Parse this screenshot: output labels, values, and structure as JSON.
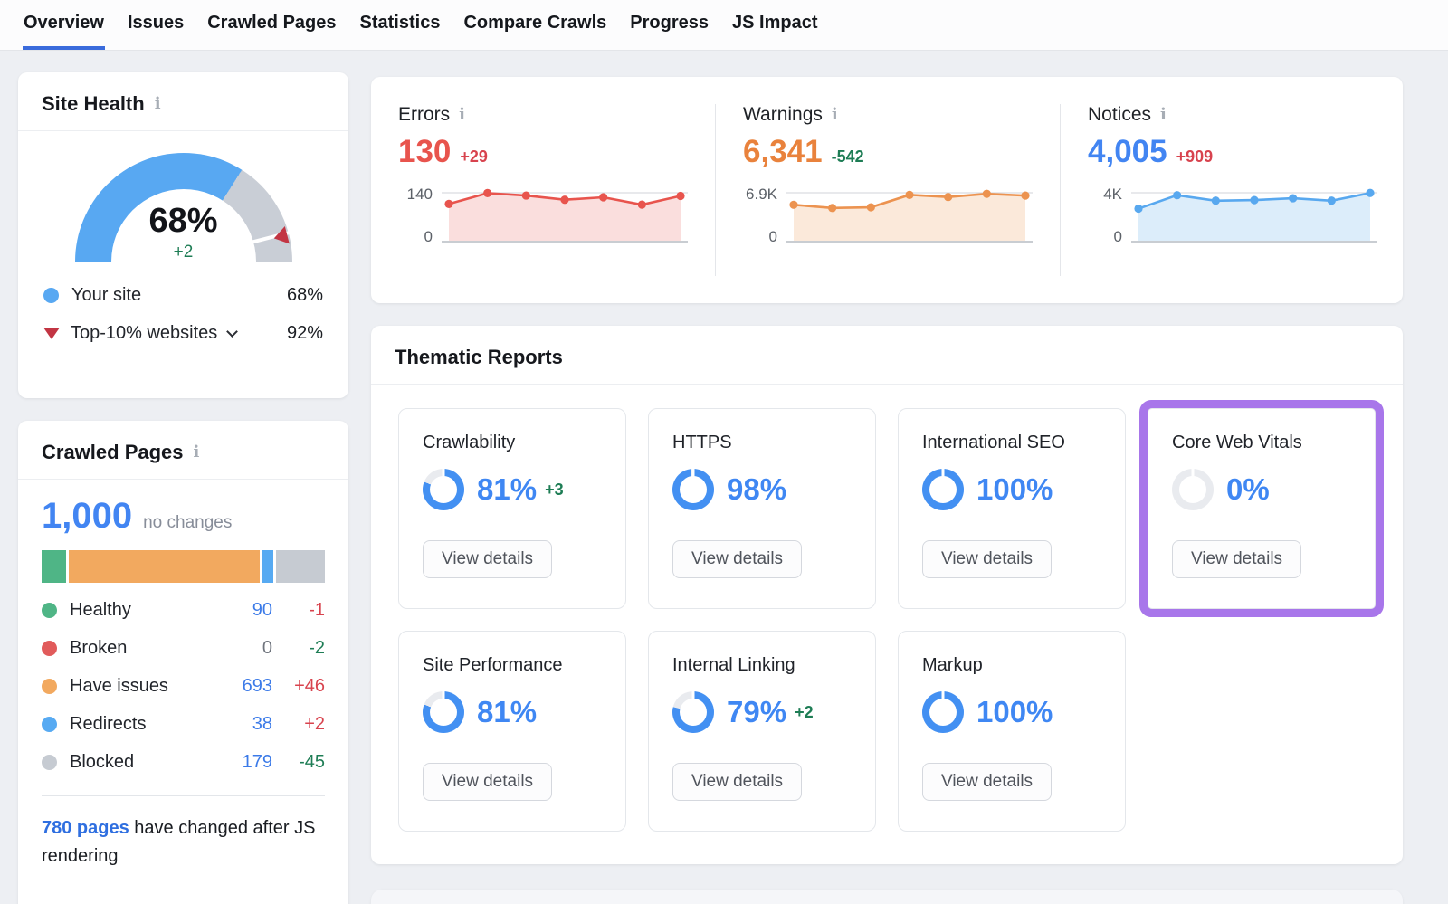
{
  "nav": {
    "active_color": "#3a6bdc",
    "tabs": [
      {
        "label": "Overview",
        "active": true
      },
      {
        "label": "Issues"
      },
      {
        "label": "Crawled Pages"
      },
      {
        "label": "Statistics"
      },
      {
        "label": "Compare Crawls"
      },
      {
        "label": "Progress"
      },
      {
        "label": "JS Impact"
      }
    ]
  },
  "icons": {
    "info": "i"
  },
  "site_health": {
    "title": "Site Health",
    "score_label": "68%",
    "score_pct": 68,
    "delta": "+2",
    "delta_color": "#1e7d55",
    "colors": {
      "gauge": "#58a8f2",
      "track": "#c9ced6",
      "marker": "#c23543"
    },
    "legend": [
      {
        "label": "Your site",
        "value": "68%"
      },
      {
        "label": "Top-10% websites",
        "value": "92%"
      }
    ]
  },
  "crawled_pages": {
    "title": "Crawled Pages",
    "total": "1,000",
    "total_note": "no changes",
    "rows": [
      {
        "label": "Healthy",
        "value": "90",
        "value_color": "#3b7ae8",
        "delta": "-1",
        "delta_color": "#d8434e",
        "color": "#4fb586"
      },
      {
        "label": "Broken",
        "value": "0",
        "value_color": "#6e737c",
        "delta": "-2",
        "delta_color": "#1e7d55",
        "color": "#e15b5b"
      },
      {
        "label": "Have issues",
        "value": "693",
        "value_color": "#3b7ae8",
        "delta": "+46",
        "delta_color": "#d8434e",
        "color": "#f2a95f"
      },
      {
        "label": "Redirects",
        "value": "38",
        "value_color": "#3b7ae8",
        "delta": "+2",
        "delta_color": "#d8434e",
        "color": "#57aaf2"
      },
      {
        "label": "Blocked",
        "value": "179",
        "value_color": "#3b7ae8",
        "delta": "-45",
        "delta_color": "#1e7d55",
        "color": "#c6cbd2"
      }
    ],
    "footer_link": "780 pages",
    "footer_text": " have changed after JS rendering"
  },
  "stats": {
    "columns": [
      {
        "title": "Errors",
        "value": "130",
        "value_color": "#e8544d",
        "delta": "+29",
        "delta_color": "#d8434e",
        "y_top": "140",
        "y_bottom": "0",
        "chart": "errors-trend"
      },
      {
        "title": "Warnings",
        "value": "6,341",
        "value_color": "#e9823c",
        "delta": "-542",
        "delta_color": "#1e7d55",
        "y_top": "6.9K",
        "y_bottom": "0",
        "chart": "warnings-trend"
      },
      {
        "title": "Notices",
        "value": "4,005",
        "value_color": "#4285f2",
        "delta": "+909",
        "delta_color": "#d8434e",
        "y_top": "4K",
        "y_bottom": "0",
        "chart": "notices-trend"
      }
    ]
  },
  "thematic": {
    "title": "Thematic Reports",
    "view_details_label": "View details",
    "accent": "#4390f2",
    "track": "#e9ebef",
    "highlight_color": "#a876ea",
    "cards": [
      {
        "title": "Crawlability",
        "pct": 81,
        "pct_label": "81%",
        "delta": "+3",
        "delta_color": "#1e7d55"
      },
      {
        "title": "HTTPS",
        "pct": 98,
        "pct_label": "98%"
      },
      {
        "title": "International SEO",
        "pct": 100,
        "pct_label": "100%"
      },
      {
        "title": "Core Web Vitals",
        "pct": 0,
        "pct_label": "0%",
        "highlight": true
      },
      {
        "title": "Site Performance",
        "pct": 81,
        "pct_label": "81%"
      },
      {
        "title": "Internal Linking",
        "pct": 79,
        "pct_label": "79%",
        "delta": "+2",
        "delta_color": "#1e7d55"
      },
      {
        "title": "Markup",
        "pct": 100,
        "pct_label": "100%"
      }
    ]
  },
  "chart_data": [
    {
      "id": "site-health-gauge",
      "type": "gauge",
      "title": "Site Health",
      "value_pct": 68,
      "delta": "+2",
      "benchmark_pct": 92,
      "series": [
        {
          "name": "Your site",
          "value": 68
        },
        {
          "name": "Top-10% websites",
          "value": 92
        }
      ],
      "colors": {
        "value": "#58a8f2",
        "track": "#c9ced6",
        "marker": "#c23543"
      }
    },
    {
      "id": "crawled-pages-bar",
      "type": "stacked_bar",
      "title": "Crawled Pages",
      "total": 1000,
      "categories": [
        "Healthy",
        "Broken",
        "Have issues",
        "Redirects",
        "Blocked"
      ],
      "values": [
        90,
        0,
        693,
        38,
        179
      ],
      "colors": [
        "#4fb586",
        "#e15b5b",
        "#f2a95f",
        "#57aaf2",
        "#c6cbd2"
      ]
    },
    {
      "id": "errors-trend",
      "type": "area",
      "title": "Errors",
      "ylim": [
        0,
        140
      ],
      "values": [
        108,
        139,
        132,
        120,
        127,
        106,
        131
      ],
      "line_color": "#e8544d",
      "fill_color": "#fadedd"
    },
    {
      "id": "warnings-trend",
      "type": "area",
      "title": "Warnings",
      "ylim": [
        0,
        6900
      ],
      "values": [
        5200,
        4750,
        4850,
        6600,
        6300,
        6750,
        6500
      ],
      "line_color": "#ec9350",
      "fill_color": "#fbe9da"
    },
    {
      "id": "notices-trend",
      "type": "area",
      "title": "Notices",
      "ylim": [
        0,
        4000
      ],
      "values": [
        2700,
        3800,
        3350,
        3400,
        3550,
        3350,
        3980
      ],
      "line_color": "#58a8ef",
      "fill_color": "#dcedfa"
    }
  ]
}
